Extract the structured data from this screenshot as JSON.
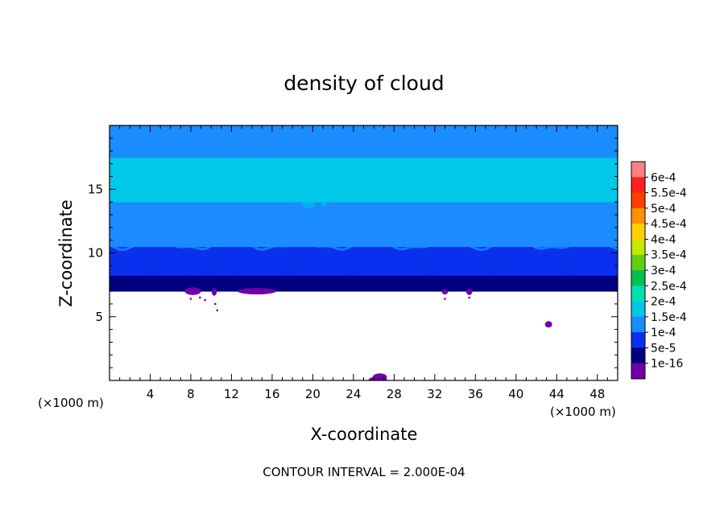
{
  "chart_data": {
    "type": "heatmap",
    "title": "density of cloud",
    "xlabel": "X-coordinate",
    "ylabel": "Z-coordinate",
    "x_unit": "(×1000 m)",
    "z_unit": "(×1000 m)",
    "xlim": [
      0,
      50
    ],
    "ylim": [
      0,
      20
    ],
    "x_ticks": [
      4,
      8,
      12,
      16,
      20,
      24,
      28,
      32,
      36,
      40,
      44,
      48
    ],
    "x_tick_labels": [
      "4",
      "8",
      "12",
      "16",
      "20",
      "24",
      "28",
      "32",
      "36",
      "40",
      "44",
      "48"
    ],
    "y_ticks": [
      5,
      10,
      15
    ],
    "y_tick_labels": [
      "5",
      "10",
      "15"
    ],
    "contour_interval_text": "CONTOUR INTERVAL = 2.000E-04",
    "colorbar": {
      "labels": [
        "6e-4",
        "5.5e-4",
        "5e-4",
        "4.5e-4",
        "4e-4",
        "3.5e-4",
        "3e-4",
        "2.5e-4",
        "2e-4",
        "1.5e-4",
        "1e-4",
        "5e-5",
        "1e-16"
      ],
      "levels": [
        0.0006,
        0.00055,
        0.0005,
        0.00045,
        0.0004,
        0.00035,
        0.0003,
        0.00025,
        0.0002,
        0.00015,
        0.0001,
        5e-05,
        1e-16
      ],
      "colors": [
        "#ff8080",
        "#ff2020",
        "#ff4000",
        "#ff9000",
        "#ffd000",
        "#c8e600",
        "#60d010",
        "#00c050",
        "#00e0b0",
        "#00c8e8",
        "#1a8cff",
        "#0a30ee",
        "#000080",
        "#7000a8"
      ]
    },
    "cloud_layer": {
      "z_base": 7.0,
      "z_top": 20,
      "profile": [
        {
          "z": 7.0,
          "value": 1e-16
        },
        {
          "z": 7.6,
          "value": 2e-05
        },
        {
          "z": 8.2,
          "value": 5e-05
        },
        {
          "z": 9.5,
          "value": 7e-05
        },
        {
          "z": 10.5,
          "value": 0.0001
        },
        {
          "z": 12.0,
          "value": 0.00012
        },
        {
          "z": 14.0,
          "value": 0.00015
        },
        {
          "z": 17.5,
          "value": 0.00015
        },
        {
          "z": 20.0,
          "value": 0.00013
        }
      ]
    }
  }
}
